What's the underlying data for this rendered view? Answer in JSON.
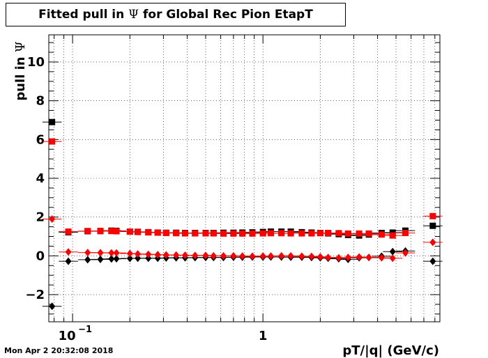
{
  "page": {
    "title_prefix": "Fitted pull in ",
    "title_symbol": "Ψ",
    "title_suffix": " for Global Rec Pion EtapT",
    "timestamp": "Mon Apr  2 20:32:08 2018"
  },
  "chart_data": {
    "type": "scatter",
    "title": "Fitted pull in Ψ for Global Rec Pion EtapT",
    "xlabel": "pT/|q| (GeV/c)",
    "ylabel": "pull in Ψ",
    "xscale": "log",
    "xlim": [
      0.075,
      8.5
    ],
    "ylim": [
      -3.4,
      11.4
    ],
    "grid": true,
    "y_ticks": [
      -2,
      0,
      2,
      4,
      6,
      8,
      10
    ],
    "y_tick_labels": [
      "−2",
      "0",
      "2",
      "4",
      "6",
      "8",
      "10"
    ],
    "x_tick_labels": [
      {
        "x": 0.1,
        "base": "10",
        "exp": "−1"
      },
      {
        "x": 1,
        "base": "1",
        "exp": ""
      }
    ],
    "series": [
      {
        "marker": "square",
        "color": "#000000",
        "points": [
          [
            0.078,
            6.9
          ],
          [
            0.095,
            1.22
          ],
          [
            0.12,
            1.27
          ],
          [
            0.14,
            1.28
          ],
          [
            0.16,
            1.3
          ],
          [
            0.17,
            1.29
          ],
          [
            0.2,
            1.25
          ],
          [
            0.22,
            1.24
          ],
          [
            0.25,
            1.22
          ],
          [
            0.28,
            1.2
          ],
          [
            0.31,
            1.19
          ],
          [
            0.35,
            1.19
          ],
          [
            0.39,
            1.18
          ],
          [
            0.44,
            1.18
          ],
          [
            0.5,
            1.18
          ],
          [
            0.55,
            1.18
          ],
          [
            0.62,
            1.19
          ],
          [
            0.7,
            1.19
          ],
          [
            0.78,
            1.2
          ],
          [
            0.88,
            1.21
          ],
          [
            1.0,
            1.23
          ],
          [
            1.1,
            1.25
          ],
          [
            1.25,
            1.25
          ],
          [
            1.4,
            1.25
          ],
          [
            1.6,
            1.22
          ],
          [
            1.8,
            1.2
          ],
          [
            2.0,
            1.18
          ],
          [
            2.2,
            1.16
          ],
          [
            2.5,
            1.12
          ],
          [
            2.8,
            1.08
          ],
          [
            3.2,
            1.05
          ],
          [
            3.6,
            1.1
          ],
          [
            4.2,
            1.18
          ],
          [
            4.8,
            1.2
          ],
          [
            5.6,
            1.3
          ],
          [
            7.8,
            1.55
          ]
        ]
      },
      {
        "marker": "square",
        "color": "#ff0000",
        "points": [
          [
            0.078,
            5.9
          ],
          [
            0.095,
            1.25
          ],
          [
            0.12,
            1.28
          ],
          [
            0.14,
            1.28
          ],
          [
            0.16,
            1.28
          ],
          [
            0.17,
            1.27
          ],
          [
            0.2,
            1.25
          ],
          [
            0.22,
            1.23
          ],
          [
            0.25,
            1.21
          ],
          [
            0.28,
            1.2
          ],
          [
            0.31,
            1.18
          ],
          [
            0.35,
            1.17
          ],
          [
            0.39,
            1.16
          ],
          [
            0.44,
            1.16
          ],
          [
            0.5,
            1.16
          ],
          [
            0.55,
            1.16
          ],
          [
            0.62,
            1.15
          ],
          [
            0.7,
            1.15
          ],
          [
            0.78,
            1.15
          ],
          [
            0.88,
            1.15
          ],
          [
            1.0,
            1.16
          ],
          [
            1.1,
            1.17
          ],
          [
            1.25,
            1.17
          ],
          [
            1.4,
            1.16
          ],
          [
            1.6,
            1.16
          ],
          [
            1.8,
            1.16
          ],
          [
            2.0,
            1.17
          ],
          [
            2.2,
            1.18
          ],
          [
            2.5,
            1.17
          ],
          [
            2.8,
            1.15
          ],
          [
            3.2,
            1.15
          ],
          [
            3.6,
            1.15
          ],
          [
            4.2,
            1.1
          ],
          [
            4.8,
            1.05
          ],
          [
            5.6,
            1.18
          ],
          [
            7.8,
            2.05
          ]
        ]
      },
      {
        "marker": "diamond",
        "color": "#000000",
        "points": [
          [
            0.078,
            -2.6
          ],
          [
            0.095,
            -0.28
          ],
          [
            0.12,
            -0.2
          ],
          [
            0.14,
            -0.18
          ],
          [
            0.16,
            -0.16
          ],
          [
            0.17,
            -0.15
          ],
          [
            0.2,
            -0.13
          ],
          [
            0.22,
            -0.12
          ],
          [
            0.25,
            -0.12
          ],
          [
            0.28,
            -0.12
          ],
          [
            0.31,
            -0.11
          ],
          [
            0.35,
            -0.1
          ],
          [
            0.39,
            -0.1
          ],
          [
            0.44,
            -0.09
          ],
          [
            0.5,
            -0.08
          ],
          [
            0.55,
            -0.08
          ],
          [
            0.62,
            -0.08
          ],
          [
            0.7,
            -0.07
          ],
          [
            0.78,
            -0.07
          ],
          [
            0.88,
            -0.06
          ],
          [
            1.0,
            -0.06
          ],
          [
            1.1,
            -0.06
          ],
          [
            1.25,
            -0.06
          ],
          [
            1.4,
            -0.07
          ],
          [
            1.6,
            -0.07
          ],
          [
            1.8,
            -0.08
          ],
          [
            2.0,
            -0.1
          ],
          [
            2.2,
            -0.12
          ],
          [
            2.5,
            -0.15
          ],
          [
            2.8,
            -0.18
          ],
          [
            3.2,
            -0.1
          ],
          [
            3.6,
            -0.08
          ],
          [
            4.2,
            -0.02
          ],
          [
            4.8,
            0.22
          ],
          [
            5.6,
            0.25
          ],
          [
            7.8,
            -0.28
          ]
        ]
      },
      {
        "marker": "diamond",
        "color": "#ff0000",
        "points": [
          [
            0.078,
            1.9
          ],
          [
            0.095,
            0.2
          ],
          [
            0.12,
            0.17
          ],
          [
            0.14,
            0.16
          ],
          [
            0.16,
            0.15
          ],
          [
            0.17,
            0.15
          ],
          [
            0.2,
            0.12
          ],
          [
            0.22,
            0.1
          ],
          [
            0.25,
            0.08
          ],
          [
            0.28,
            0.06
          ],
          [
            0.31,
            0.05
          ],
          [
            0.35,
            0.04
          ],
          [
            0.39,
            0.03
          ],
          [
            0.44,
            0.02
          ],
          [
            0.5,
            0.02
          ],
          [
            0.55,
            0.0
          ],
          [
            0.62,
            0.0
          ],
          [
            0.7,
            0.0
          ],
          [
            0.78,
            -0.01
          ],
          [
            0.88,
            -0.02
          ],
          [
            1.0,
            -0.01
          ],
          [
            1.1,
            -0.01
          ],
          [
            1.25,
            0.0
          ],
          [
            1.4,
            0.0
          ],
          [
            1.6,
            -0.02
          ],
          [
            1.8,
            -0.03
          ],
          [
            2.0,
            -0.05
          ],
          [
            2.2,
            -0.08
          ],
          [
            2.5,
            -0.1
          ],
          [
            2.8,
            -0.08
          ],
          [
            3.2,
            -0.06
          ],
          [
            3.6,
            -0.08
          ],
          [
            4.2,
            -0.1
          ],
          [
            4.8,
            -0.12
          ],
          [
            5.6,
            0.15
          ],
          [
            7.8,
            0.7
          ]
        ]
      }
    ]
  }
}
